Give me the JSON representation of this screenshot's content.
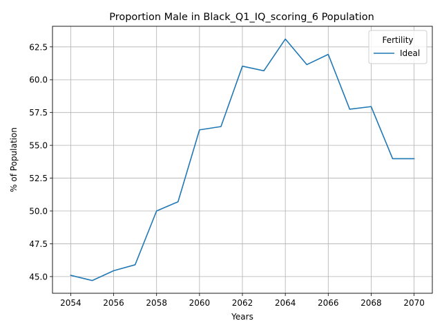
{
  "chart_data": {
    "type": "line",
    "title": "Proportion Male in Black_Q1_IQ_scoring_6 Population",
    "xlabel": "Years",
    "ylabel": "% of Population",
    "xlim": [
      2053.15,
      2070.85
    ],
    "ylim": [
      43.73,
      64.07
    ],
    "x_ticks": [
      2054,
      2056,
      2058,
      2060,
      2062,
      2064,
      2066,
      2068,
      2070
    ],
    "y_ticks": [
      45.0,
      47.5,
      50.0,
      52.5,
      55.0,
      57.5,
      60.0,
      62.5
    ],
    "y_tick_labels": [
      "45.0",
      "47.5",
      "50.0",
      "52.5",
      "55.0",
      "57.5",
      "60.0",
      "62.5"
    ],
    "grid": true,
    "legend": {
      "title": "Fertility",
      "placement": "top-right"
    },
    "series": [
      {
        "name": "Ideal",
        "color": "#1f77b4",
        "x": [
          2054,
          2055,
          2056,
          2057,
          2058,
          2059,
          2060,
          2061,
          2062,
          2063,
          2064,
          2065,
          2066,
          2067,
          2068,
          2069,
          2070
        ],
        "values": [
          45.1,
          44.7,
          45.45,
          45.9,
          50.0,
          50.7,
          56.18,
          56.43,
          61.03,
          60.68,
          63.1,
          61.15,
          61.93,
          57.75,
          57.95,
          53.98,
          53.98
        ]
      }
    ]
  }
}
